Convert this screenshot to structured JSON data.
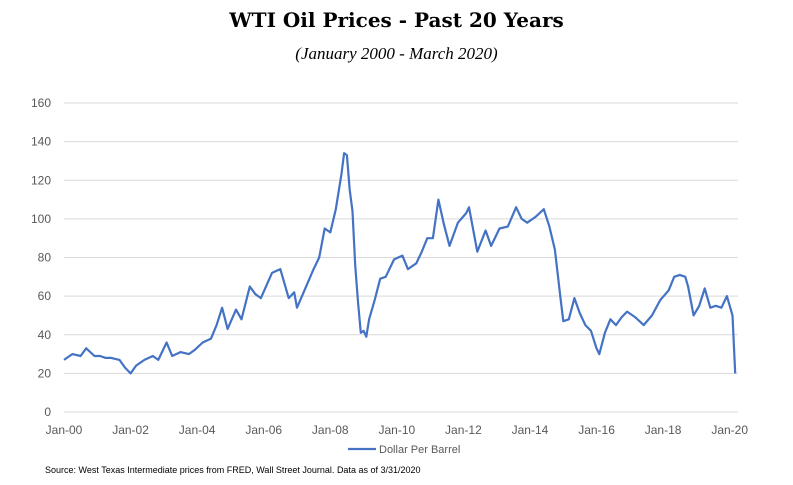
{
  "chart_data": {
    "type": "line",
    "title": "WTI Oil Prices - Past 20 Years",
    "subtitle": "(January 2000 - March 2020)",
    "xlabel": "",
    "ylabel": "",
    "ylim": [
      0,
      160
    ],
    "yticks": [
      0,
      20,
      40,
      60,
      80,
      100,
      120,
      140,
      160
    ],
    "xlim": [
      "2000-01",
      "2020-03"
    ],
    "xticks": [
      "Jan-00",
      "Jan-02",
      "Jan-04",
      "Jan-06",
      "Jan-08",
      "Jan-10",
      "Jan-12",
      "Jan-14",
      "Jan-16",
      "Jan-18",
      "Jan-20"
    ],
    "grid": "horizontal",
    "legend": "bottom",
    "line_color": "#4472C4",
    "series": [
      {
        "name": "Dollar Per Barrel",
        "x": [
          "2000-01",
          "2000-04",
          "2000-07",
          "2000-09",
          "2000-12",
          "2001-02",
          "2001-04",
          "2001-06",
          "2001-09",
          "2001-11",
          "2002-01",
          "2002-03",
          "2002-06",
          "2002-09",
          "2002-11",
          "2003-02",
          "2003-04",
          "2003-07",
          "2003-10",
          "2003-12",
          "2004-03",
          "2004-06",
          "2004-08",
          "2004-10",
          "2004-12",
          "2005-03",
          "2005-05",
          "2005-08",
          "2005-10",
          "2005-12",
          "2006-04",
          "2006-07",
          "2006-10",
          "2006-12",
          "2007-01",
          "2007-04",
          "2007-07",
          "2007-09",
          "2007-11",
          "2008-01",
          "2008-03",
          "2008-05",
          "2008-06",
          "2008-07",
          "2008-08",
          "2008-09",
          "2008-10",
          "2008-11",
          "2008-12",
          "2009-01",
          "2009-02",
          "2009-03",
          "2009-05",
          "2009-07",
          "2009-09",
          "2009-12",
          "2010-03",
          "2010-05",
          "2010-08",
          "2010-10",
          "2010-12",
          "2011-02",
          "2011-04",
          "2011-06",
          "2011-08",
          "2011-11",
          "2012-02",
          "2012-03",
          "2012-06",
          "2012-09",
          "2012-11",
          "2013-02",
          "2013-05",
          "2013-08",
          "2013-10",
          "2013-12",
          "2014-03",
          "2014-06",
          "2014-08",
          "2014-10",
          "2014-12",
          "2015-01",
          "2015-03",
          "2015-05",
          "2015-07",
          "2015-09",
          "2015-11",
          "2016-01",
          "2016-02",
          "2016-04",
          "2016-06",
          "2016-08",
          "2016-10",
          "2016-12",
          "2017-03",
          "2017-06",
          "2017-09",
          "2017-12",
          "2018-03",
          "2018-05",
          "2018-07",
          "2018-09",
          "2018-10",
          "2018-12",
          "2019-02",
          "2019-04",
          "2019-06",
          "2019-08",
          "2019-10",
          "2019-12",
          "2020-02",
          "2020-03"
        ],
        "y": [
          27,
          30,
          29,
          33,
          29,
          29,
          28,
          28,
          27,
          23,
          20,
          24,
          27,
          29,
          27,
          36,
          29,
          31,
          30,
          32,
          36,
          38,
          45,
          54,
          43,
          53,
          48,
          65,
          61,
          59,
          72,
          74,
          59,
          62,
          54,
          64,
          74,
          80,
          95,
          93,
          105,
          123,
          134,
          133,
          115,
          104,
          76,
          57,
          41,
          42,
          39,
          48,
          58,
          69,
          70,
          79,
          81,
          74,
          77,
          83,
          90,
          90,
          110,
          97,
          86,
          98,
          103,
          106,
          83,
          94,
          86,
          95,
          96,
          106,
          100,
          98,
          101,
          105,
          96,
          84,
          59,
          47,
          48,
          59,
          51,
          45,
          42,
          33,
          30,
          41,
          48,
          45,
          49,
          52,
          49,
          45,
          50,
          58,
          63,
          70,
          71,
          70,
          65,
          50,
          55,
          64,
          54,
          55,
          54,
          60,
          50,
          20
        ]
      }
    ]
  },
  "source_note": "Source: West Texas Intermediate prices from FRED, Wall Street Journal. Data as of 3/31/2020"
}
